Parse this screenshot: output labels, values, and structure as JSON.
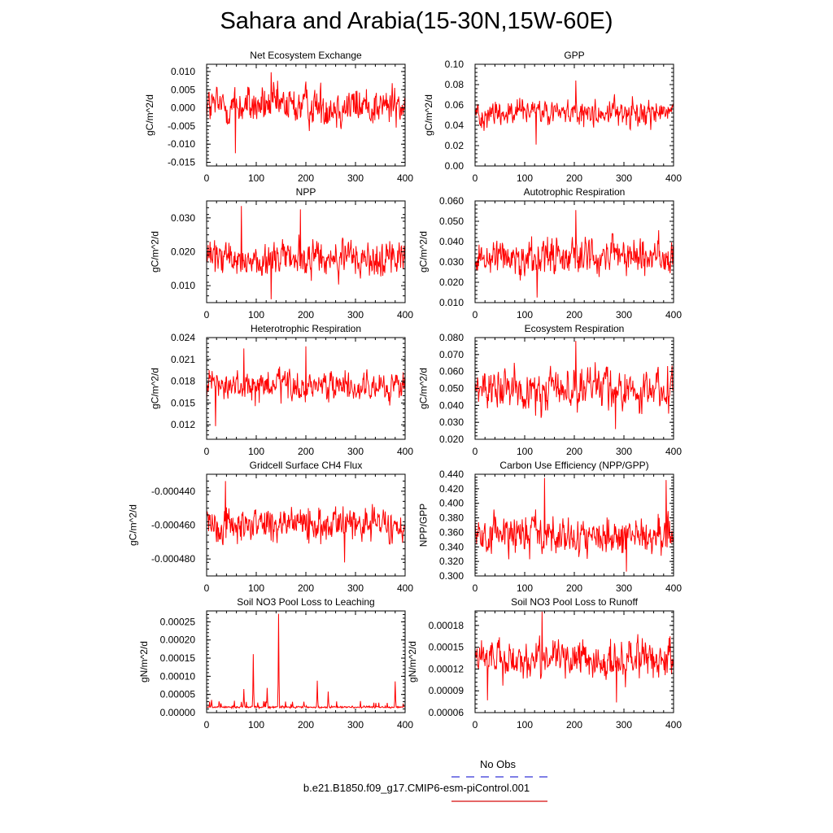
{
  "title": "Sahara and Arabia(15-30N,15W-60E)",
  "legend": {
    "obs_label": "No Obs",
    "obs_color": "#5555dd",
    "model_label": "b.e21.B1850.f09_g17.CMIP6-esm-piControl.001",
    "model_color": "#dd3333"
  },
  "line_color": "#ff0000",
  "chart_data": [
    {
      "type": "line",
      "title": "Net Ecosystem Exchange",
      "ylabel": "gC/m^2/d",
      "xlim": [
        0,
        400
      ],
      "ylim": [
        -0.016,
        0.012
      ],
      "xticks": [
        0,
        100,
        200,
        300,
        400
      ],
      "yticks": [
        -0.015,
        -0.01,
        -0.005,
        0,
        0.005,
        0.01
      ],
      "ytick_labels": [
        "-0.015",
        "-0.010",
        "-0.005",
        "0.000",
        "0.005",
        "0.010"
      ],
      "series_stats": {
        "mean": 0.0005,
        "amp": 0.0038,
        "min": -0.0125,
        "max": 0.0098,
        "peaks": [
          [
            130,
            0.0098
          ],
          [
            58,
            -0.0125
          ]
        ]
      }
    },
    {
      "type": "line",
      "title": "GPP",
      "ylabel": "gC/m^2/d",
      "xlim": [
        0,
        400
      ],
      "ylim": [
        0,
        0.1
      ],
      "xticks": [
        0,
        100,
        200,
        300,
        400
      ],
      "yticks": [
        0,
        0.02,
        0.04,
        0.06,
        0.08,
        0.1
      ],
      "ytick_labels": [
        "0.00",
        "0.02",
        "0.04",
        "0.06",
        "0.08",
        "0.10"
      ],
      "series_stats": {
        "mean": 0.052,
        "amp": 0.009,
        "min": 0.02,
        "max": 0.084,
        "peaks": [
          [
            203,
            0.084
          ],
          [
            123,
            0.021
          ]
        ]
      }
    },
    {
      "type": "line",
      "title": "NPP",
      "ylabel": "gC/m^2/d",
      "xlim": [
        0,
        400
      ],
      "ylim": [
        0.005,
        0.035
      ],
      "xticks": [
        0,
        100,
        200,
        300,
        400
      ],
      "yticks": [
        0.01,
        0.02,
        0.03
      ],
      "ytick_labels": [
        "0.010",
        "0.020",
        "0.030"
      ],
      "series_stats": {
        "mean": 0.0178,
        "amp": 0.0038,
        "min": 0.006,
        "max": 0.0335,
        "peaks": [
          [
            70,
            0.0335
          ],
          [
            189,
            0.0325
          ],
          [
            130,
            0.006
          ]
        ]
      }
    },
    {
      "type": "line",
      "title": "Autotrophic Respiration",
      "ylabel": "gC/m^2/d",
      "xlim": [
        0,
        400
      ],
      "ylim": [
        0.01,
        0.06
      ],
      "xticks": [
        0,
        100,
        200,
        300,
        400
      ],
      "yticks": [
        0.01,
        0.02,
        0.03,
        0.04,
        0.05,
        0.06
      ],
      "ytick_labels": [
        "0.010",
        "0.020",
        "0.030",
        "0.040",
        "0.050",
        "0.060"
      ],
      "series_stats": {
        "mean": 0.033,
        "amp": 0.0065,
        "min": 0.012,
        "max": 0.0555,
        "peaks": [
          [
            203,
            0.0555
          ],
          [
            125,
            0.0125
          ]
        ]
      }
    },
    {
      "type": "line",
      "title": "Heterotrophic Respiration",
      "ylabel": "gC/m^2/d",
      "xlim": [
        0,
        400
      ],
      "ylim": [
        0.01,
        0.024
      ],
      "xticks": [
        0,
        100,
        200,
        300,
        400
      ],
      "yticks": [
        0.012,
        0.015,
        0.018,
        0.021,
        0.024
      ],
      "ytick_labels": [
        "0.012",
        "0.015",
        "0.018",
        "0.021",
        "0.024"
      ],
      "series_stats": {
        "mean": 0.0172,
        "amp": 0.0014,
        "min": 0.0118,
        "max": 0.0228,
        "peaks": [
          [
            200,
            0.0228
          ],
          [
            75,
            0.0225
          ],
          [
            18,
            0.0118
          ]
        ]
      }
    },
    {
      "type": "line",
      "title": "Ecosystem Respiration",
      "ylabel": "gC/m^2/d",
      "xlim": [
        0,
        400
      ],
      "ylim": [
        0.02,
        0.08
      ],
      "xticks": [
        0,
        100,
        200,
        300,
        400
      ],
      "yticks": [
        0.02,
        0.03,
        0.04,
        0.05,
        0.06,
        0.07,
        0.08
      ],
      "ytick_labels": [
        "0.020",
        "0.030",
        "0.040",
        "0.050",
        "0.060",
        "0.070",
        "0.080"
      ],
      "series_stats": {
        "mean": 0.05,
        "amp": 0.0085,
        "min": 0.026,
        "max": 0.078,
        "peaks": [
          [
            203,
            0.078
          ],
          [
            283,
            0.026
          ]
        ]
      }
    },
    {
      "type": "line",
      "title": "Gridcell Surface CH4 Flux",
      "ylabel": "gC/m^2/d",
      "xlim": [
        0,
        400
      ],
      "ylim": [
        -0.00049,
        -0.00043
      ],
      "xticks": [
        0,
        100,
        200,
        300,
        400
      ],
      "yticks": [
        -0.00048,
        -0.00046,
        -0.00044
      ],
      "ytick_labels": [
        "-0.000480",
        "-0.000460",
        "-0.000440"
      ],
      "series_stats": {
        "mean": -0.000459,
        "amp": 7.5e-06,
        "min": -0.000482,
        "max": -0.000434,
        "peaks": [
          [
            38,
            -0.000434
          ],
          [
            278,
            -0.000482
          ]
        ]
      }
    },
    {
      "type": "line",
      "title": "Carbon Use Efficiency (NPP/GPP)",
      "ylabel": "NPP/GPP",
      "xlim": [
        0,
        400
      ],
      "ylim": [
        0.3,
        0.44
      ],
      "xticks": [
        0,
        100,
        200,
        300,
        400
      ],
      "yticks": [
        0.3,
        0.32,
        0.34,
        0.36,
        0.38,
        0.4,
        0.42,
        0.44
      ],
      "ytick_labels": [
        "0.300",
        "0.320",
        "0.340",
        "0.360",
        "0.380",
        "0.400",
        "0.420",
        "0.440"
      ],
      "series_stats": {
        "mean": 0.355,
        "amp": 0.019,
        "min": 0.305,
        "max": 0.435,
        "peaks": [
          [
            140,
            0.435
          ],
          [
            385,
            0.432
          ],
          [
            305,
            0.306
          ]
        ]
      }
    },
    {
      "type": "line",
      "title": "Soil NO3 Pool Loss to Leaching",
      "ylabel": "gN/m^2/d",
      "xlim": [
        0,
        400
      ],
      "ylim": [
        0,
        0.00028
      ],
      "xticks": [
        0,
        100,
        200,
        300,
        400
      ],
      "yticks": [
        0,
        5e-05,
        0.0001,
        0.00015,
        0.0002,
        0.00025
      ],
      "ytick_labels": [
        "0.00000",
        "0.00005",
        "0.00010",
        "0.00015",
        "0.00020",
        "0.00025"
      ],
      "series_stats": {
        "mean": 1.5e-05,
        "amp": 3.5e-06,
        "min": 3e-06,
        "max": 0.000272,
        "spiky": true,
        "peaks": [
          [
            145,
            0.000272
          ],
          [
            94,
            0.000161
          ],
          [
            75,
            6.5e-05
          ],
          [
            122,
            6.8e-05
          ],
          [
            223,
            8.8e-05
          ],
          [
            245,
            5.8e-05
          ],
          [
            380,
            8.6e-05
          ],
          [
            10,
            3.5e-05
          ],
          [
            196,
            3e-05
          ]
        ]
      }
    },
    {
      "type": "line",
      "title": "Soil NO3 Pool Loss to Runoff",
      "ylabel": "gN/m^2/d",
      "xlim": [
        0,
        400
      ],
      "ylim": [
        6e-05,
        0.0002
      ],
      "xticks": [
        0,
        100,
        200,
        300,
        400
      ],
      "yticks": [
        6e-05,
        9e-05,
        0.00012,
        0.00015,
        0.00018
      ],
      "ytick_labels": [
        "0.00006",
        "0.00009",
        "0.00012",
        "0.00015",
        "0.00018"
      ],
      "series_stats": {
        "mean": 0.000132,
        "amp": 1.8e-05,
        "min": 7.4e-05,
        "max": 0.000199,
        "peaks": [
          [
            135,
            0.000199
          ],
          [
            25,
            7.7e-05
          ],
          [
            285,
            7.4e-05
          ]
        ]
      }
    }
  ]
}
